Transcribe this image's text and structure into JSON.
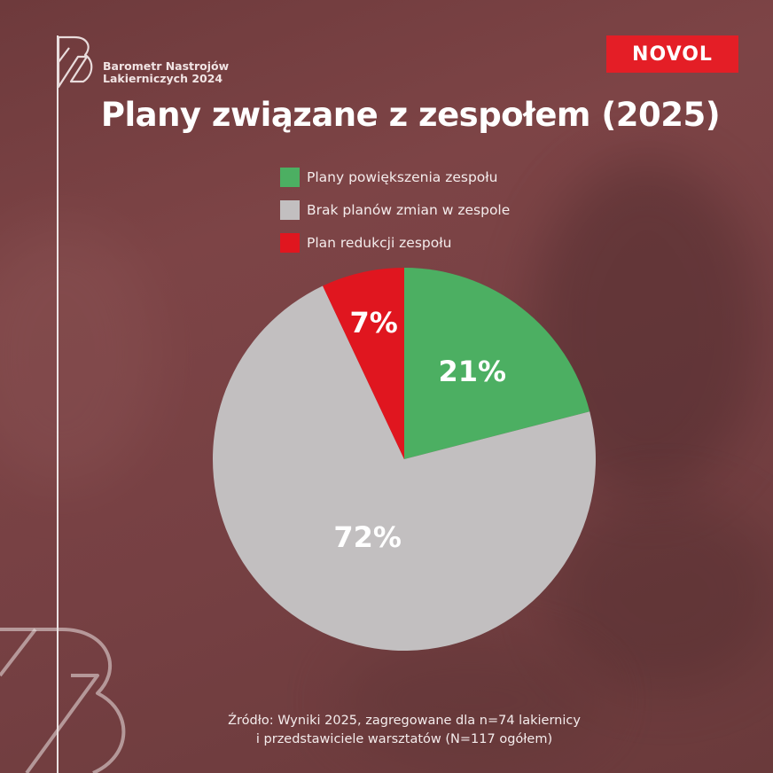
{
  "brand": {
    "name_line1": "Barometr Nastrojów",
    "name_line2": "Lakierniczych 2024",
    "logo_label": "NOVOL"
  },
  "title": "Plany związane z zespołem (2025)",
  "legend": [
    {
      "label": "Plany powiększenia zespołu",
      "color": "#4caf62"
    },
    {
      "label": "Brak planów zmian w zespole",
      "color": "#c2bfc0"
    },
    {
      "label": "Plan redukcji zespołu",
      "color": "#e0161f"
    }
  ],
  "chart_data": {
    "type": "pie",
    "title": "Plany związane z zespołem (2025)",
    "slices": [
      {
        "label": "Plany powiększenia zespołu",
        "value": 21,
        "display": "21%",
        "color": "#4caf62"
      },
      {
        "label": "Brak planów zmian w zespole",
        "value": 72,
        "display": "72%",
        "color": "#c2bfc0"
      },
      {
        "label": "Plan redukcji zespołu",
        "value": 7,
        "display": "7%",
        "color": "#e0161f"
      }
    ],
    "start": "top",
    "direction": "clockwise",
    "legend_position": "top"
  },
  "source": {
    "line1": "Źródło: Wyniki 2025, zagregowane dla n=74 lakiernicy",
    "line2": "i przedstawiciele warsztatów (N=117 ogółem)"
  }
}
